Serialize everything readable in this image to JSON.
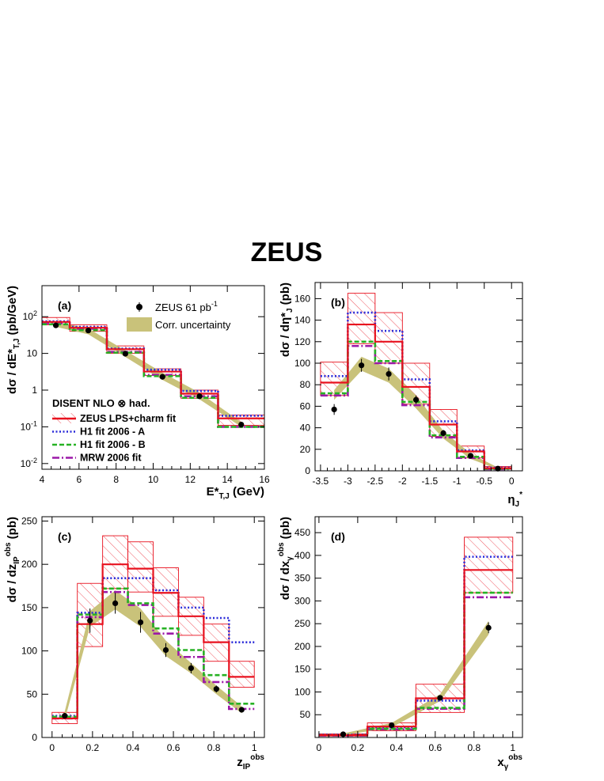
{
  "figure": {
    "title": "ZEUS",
    "legend": {
      "data_label": "ZEUS 61 pb",
      "data_label_sup": "-1",
      "uncertainty_label": "Corr. uncertainty",
      "theory_header": "DISENT NLO ⊗ had.",
      "fits": [
        {
          "label": "ZEUS LPS+charm fit",
          "color": "#e8111e",
          "style": "solid"
        },
        {
          "label": "H1 fit 2006 - A",
          "color": "#2b2bd9",
          "style": "dotted"
        },
        {
          "label": "H1 fit 2006 - B",
          "color": "#27b224",
          "style": "dashed"
        },
        {
          "label": "MRW 2006 fit",
          "color": "#9c19a8",
          "style": "dashdot"
        }
      ]
    },
    "colors": {
      "zeus": "#e8111e",
      "h1a": "#2b2bd9",
      "h1b": "#27b224",
      "mrw": "#9c19a8",
      "band": "#c9c27a"
    }
  },
  "chart_data": [
    {
      "id": "a",
      "type": "line",
      "panel_label": "(a)",
      "xlabel_main": "E*",
      "xlabel_sub": "T,J",
      "xlabel_unit": " (GeV)",
      "ylabel": "dσ / dE*T,J (pb/GeV)",
      "xlim": [
        4,
        16
      ],
      "ylim": [
        0.007,
        700
      ],
      "ylog": true,
      "xticks": [
        4,
        6,
        8,
        10,
        12,
        14,
        16
      ],
      "yticks": [
        {
          "v": 0.01,
          "b": "10",
          "e": "-2"
        },
        {
          "v": 0.1,
          "b": "10",
          "e": "-1"
        },
        {
          "v": 1,
          "b": "1",
          "e": ""
        },
        {
          "v": 10,
          "b": "10",
          "e": ""
        },
        {
          "v": 100,
          "b": "10",
          "e": "2"
        }
      ],
      "bins": [
        4,
        5.5,
        7.5,
        9.5,
        11.5,
        13.5,
        16
      ],
      "data": {
        "x": [
          4.75,
          6.5,
          8.5,
          10.5,
          12.5,
          14.75
        ],
        "y": [
          58,
          42,
          9.8,
          2.3,
          0.68,
          0.115
        ],
        "err": [
          6,
          4,
          1,
          0.25,
          0.08,
          0.02
        ]
      },
      "band": {
        "x": [
          4.75,
          6.5,
          8.5,
          10.5,
          12.5,
          14.75
        ],
        "lo": [
          53,
          33,
          8.0,
          1.9,
          0.56,
          0.1
        ],
        "hi": [
          72,
          48,
          12,
          3.0,
          0.85,
          0.135
        ]
      },
      "zeus": [
        72,
        50,
        13,
        3.2,
        0.8,
        0.17
      ],
      "zeus_lo": [
        60,
        40,
        10,
        2.5,
        0.6,
        0.11
      ],
      "zeus_hi": [
        95,
        60,
        16,
        3.8,
        1.0,
        0.21
      ],
      "h1a": [
        75,
        53,
        13.5,
        3.6,
        0.95,
        0.2
      ],
      "h1b": [
        62,
        43,
        10.5,
        2.4,
        0.62,
        0.1
      ],
      "mrw": [
        66,
        47,
        11,
        2.6,
        0.68,
        0.1
      ]
    },
    {
      "id": "b",
      "type": "line",
      "panel_label": "(b)",
      "xlabel_main": "η",
      "xlabel_sub": "J",
      "xlabel_sup": "*",
      "ylabel": "dσ / dη*J (pb)",
      "xlim": [
        -3.6,
        0.2
      ],
      "ylim": [
        0,
        175
      ],
      "ylog": false,
      "xticks": [
        -3.5,
        -3,
        -2.5,
        -2,
        -1.5,
        -1,
        -0.5,
        0
      ],
      "yticks": [
        0,
        20,
        40,
        60,
        80,
        100,
        120,
        140,
        160
      ],
      "bins": [
        -3.5,
        -3,
        -2.5,
        -2,
        -1.5,
        -1,
        -0.5,
        0
      ],
      "data": {
        "x": [
          -3.25,
          -2.75,
          -2.25,
          -1.75,
          -1.25,
          -0.75,
          -0.25
        ],
        "y": [
          57,
          98,
          90,
          66,
          35,
          14,
          2
        ],
        "err": [
          5,
          6,
          6,
          4,
          3,
          2,
          1
        ]
      },
      "band": {
        "x": [
          -3.25,
          -2.75,
          -2.25,
          -1.75,
          -1.25,
          -0.75,
          -0.25
        ],
        "lo": [
          66,
          93,
          82,
          58,
          30,
          11,
          1.5
        ],
        "hi": [
          75,
          106,
          95,
          70,
          37,
          16,
          3
        ]
      },
      "zeus": [
        82,
        136,
        120,
        78,
        43,
        18,
        2.5
      ],
      "zeus_lo": [
        70,
        118,
        100,
        62,
        32,
        12,
        1.5
      ],
      "zeus_hi": [
        101,
        165,
        147,
        100,
        57,
        23,
        4
      ],
      "h1a": [
        88,
        147,
        130,
        85,
        46,
        19,
        3
      ],
      "h1b": [
        72,
        120,
        102,
        64,
        33,
        13,
        2
      ],
      "mrw": [
        70,
        116,
        100,
        61,
        31,
        12,
        1.5
      ]
    },
    {
      "id": "c",
      "type": "line",
      "panel_label": "(c)",
      "xlabel_main": "z",
      "xlabel_sub": "IP",
      "xlabel_sup": "obs",
      "ylabel": "dσ / dz_IP^obs (pb)",
      "xlim": [
        -0.05,
        1.05
      ],
      "ylim": [
        0,
        255
      ],
      "ylog": false,
      "xticks": [
        0,
        0.2,
        0.4,
        0.6,
        0.8,
        1
      ],
      "yticks": [
        0,
        50,
        100,
        150,
        200,
        250
      ],
      "bins": [
        0,
        0.125,
        0.25,
        0.375,
        0.5,
        0.625,
        0.75,
        0.875,
        1
      ],
      "data": {
        "x": [
          0.0625,
          0.1875,
          0.3125,
          0.4375,
          0.5625,
          0.6875,
          0.8125,
          0.9375
        ],
        "y": [
          25,
          135,
          155,
          133,
          101,
          80,
          56,
          32
        ],
        "err": [
          3,
          14,
          12,
          12,
          8,
          6,
          4,
          3
        ]
      },
      "band": {
        "x": [
          0.0625,
          0.1875,
          0.3125,
          0.4375,
          0.5625,
          0.6875,
          0.8125,
          0.9375
        ],
        "lo": [
          20,
          128,
          148,
          128,
          94,
          74,
          50,
          28
        ],
        "hi": [
          30,
          146,
          170,
          149,
          112,
          86,
          60,
          36
        ]
      },
      "zeus": [
        22,
        131,
        200,
        195,
        167,
        140,
        110,
        70
      ],
      "zeus_lo": [
        16,
        105,
        172,
        168,
        140,
        118,
        88,
        58
      ],
      "zeus_hi": [
        29,
        178,
        233,
        226,
        196,
        162,
        131,
        88
      ],
      "h1a": [
        25,
        144,
        184,
        184,
        170,
        150,
        138,
        110
      ],
      "h1b": [
        24,
        142,
        172,
        155,
        126,
        101,
        72,
        39
      ],
      "mrw": [
        22,
        139,
        168,
        153,
        120,
        93,
        64,
        33
      ]
    },
    {
      "id": "d",
      "type": "line",
      "panel_label": "(d)",
      "xlabel_main": "x",
      "xlabel_sub": "γ",
      "xlabel_sup": "obs",
      "ylabel": "dσ / dx_γ^obs (pb)",
      "xlim": [
        -0.02,
        1.05
      ],
      "ylim": [
        0,
        485
      ],
      "ylog": false,
      "xticks": [
        0,
        0.2,
        0.4,
        0.6,
        0.8,
        1
      ],
      "yticks": [
        50,
        100,
        150,
        200,
        250,
        300,
        350,
        400,
        450
      ],
      "bins": [
        0,
        0.25,
        0.5,
        0.75,
        1
      ],
      "data": {
        "x": [
          0.125,
          0.375,
          0.625,
          0.875
        ],
        "y": [
          7,
          27,
          87,
          241
        ],
        "err": [
          2,
          4,
          6,
          12
        ]
      },
      "band": {
        "x": [
          0.125,
          0.375,
          0.625,
          0.875
        ],
        "lo": [
          5,
          22,
          80,
          226
        ],
        "hi": [
          9,
          32,
          95,
          256
        ]
      },
      "zeus": [
        5,
        24,
        86,
        368
      ],
      "zeus_lo": [
        3,
        15,
        55,
        318
      ],
      "zeus_hi": [
        8,
        32,
        117,
        440
      ],
      "h1a": [
        6,
        23,
        81,
        397
      ],
      "h1b": [
        5,
        19,
        65,
        318
      ],
      "mrw": [
        4,
        18,
        63,
        308
      ]
    }
  ]
}
